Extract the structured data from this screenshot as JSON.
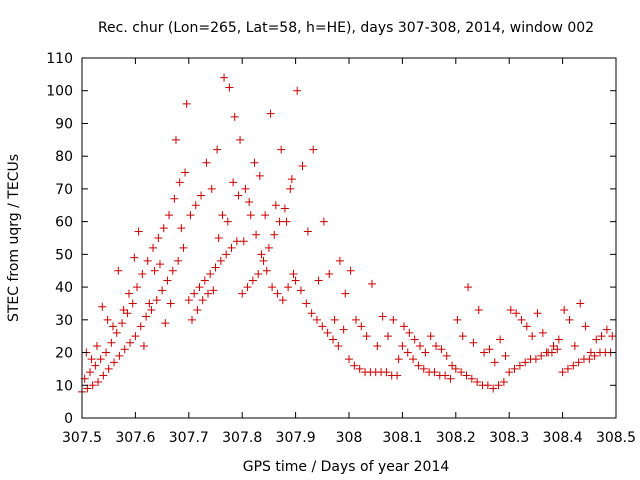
{
  "chart_data": {
    "type": "scatter",
    "title": "Rec. chur (Lon=265, Lat=58, h=HE), days 307-308, 2014, window 002",
    "xlabel": "GPS time / Days of year 2014",
    "ylabel": "STEC from uqrg / TECUs",
    "xlim": [
      307.5,
      308.5
    ],
    "ylim": [
      0,
      110
    ],
    "xticks": [
      "307.5",
      "307.6",
      "307.7",
      "307.8",
      "307.9",
      "308",
      "308.1",
      "308.2",
      "308.3",
      "308.4",
      "308.5"
    ],
    "yticks": [
      "0",
      "10",
      "20",
      "30",
      "40",
      "50",
      "60",
      "70",
      "80",
      "90",
      "100",
      "110"
    ],
    "grid": false,
    "legend": "none",
    "marker": "plus",
    "color": "#cc0000",
    "series": [
      {
        "x": [
          307.5,
          307.51,
          307.52,
          307.53,
          307.54,
          307.55,
          307.56,
          307.57,
          307.58,
          307.59,
          307.505,
          307.515,
          307.525,
          307.535,
          307.545,
          307.555,
          307.565,
          307.575,
          307.585,
          307.595,
          307.508,
          307.518,
          307.528,
          307.538,
          307.548,
          307.558,
          307.568,
          307.578,
          307.588,
          307.598,
          307.6,
          307.61,
          307.62,
          307.63,
          307.64,
          307.65,
          307.66,
          307.67,
          307.68,
          307.69,
          307.603,
          307.613,
          307.623,
          307.633,
          307.643,
          307.653,
          307.663,
          307.673,
          307.683,
          307.693,
          307.606,
          307.616,
          307.626,
          307.636,
          307.646,
          307.656,
          307.666,
          307.676,
          307.686,
          307.696,
          307.7,
          307.71,
          307.72,
          307.73,
          307.74,
          307.75,
          307.76,
          307.77,
          307.78,
          307.79,
          307.703,
          307.713,
          307.723,
          307.733,
          307.743,
          307.753,
          307.763,
          307.773,
          307.783,
          307.793,
          307.706,
          307.716,
          307.726,
          307.736,
          307.746,
          307.756,
          307.766,
          307.776,
          307.786,
          307.796,
          307.8,
          307.81,
          307.82,
          307.83,
          307.84,
          307.85,
          307.86,
          307.87,
          307.88,
          307.89,
          307.803,
          307.813,
          307.823,
          307.833,
          307.843,
          307.853,
          307.863,
          307.873,
          307.883,
          307.893,
          307.806,
          307.816,
          307.826,
          307.836,
          307.846,
          307.856,
          307.866,
          307.876,
          307.886,
          307.896,
          307.9,
          307.91,
          307.92,
          307.93,
          307.94,
          307.95,
          307.96,
          307.97,
          307.98,
          307.99,
          307.903,
          307.913,
          307.923,
          307.933,
          307.943,
          307.953,
          307.963,
          307.973,
          307.983,
          307.993,
          308.0,
          308.01,
          308.02,
          308.03,
          308.04,
          308.05,
          308.06,
          308.07,
          308.08,
          308.09,
          308.003,
          308.013,
          308.023,
          308.033,
          308.043,
          308.053,
          308.063,
          308.073,
          308.083,
          308.093,
          308.1,
          308.11,
          308.12,
          308.13,
          308.14,
          308.15,
          308.16,
          308.17,
          308.18,
          308.19,
          308.103,
          308.113,
          308.123,
          308.133,
          308.143,
          308.153,
          308.163,
          308.173,
          308.183,
          308.193,
          308.2,
          308.21,
          308.22,
          308.23,
          308.24,
          308.25,
          308.26,
          308.27,
          308.28,
          308.29,
          308.203,
          308.213,
          308.223,
          308.233,
          308.243,
          308.253,
          308.263,
          308.273,
          308.283,
          308.293,
          308.3,
          308.31,
          308.32,
          308.33,
          308.34,
          308.35,
          308.36,
          308.37,
          308.38,
          308.39,
          308.303,
          308.313,
          308.323,
          308.333,
          308.343,
          308.353,
          308.363,
          308.373,
          308.383,
          308.393,
          308.4,
          308.41,
          308.42,
          308.43,
          308.44,
          308.45,
          308.46,
          308.47,
          308.48,
          308.49,
          308.403,
          308.413,
          308.423,
          308.433,
          308.443,
          308.453,
          308.463,
          308.473,
          308.483,
          308.493
        ],
        "y": [
          8,
          9,
          10,
          11,
          13,
          15,
          17,
          19,
          21,
          23,
          12,
          14,
          16,
          18,
          20,
          23,
          26,
          29,
          32,
          35,
          20,
          18,
          22,
          34,
          30,
          28,
          45,
          33,
          38,
          49,
          25,
          28,
          31,
          33,
          36,
          39,
          42,
          45,
          48,
          52,
          40,
          44,
          48,
          52,
          55,
          58,
          62,
          67,
          72,
          75,
          57,
          22,
          35,
          45,
          47,
          29,
          35,
          85,
          58,
          96,
          36,
          38,
          40,
          42,
          44,
          46,
          48,
          50,
          52,
          54,
          62,
          65,
          68,
          78,
          70,
          82,
          62,
          60,
          72,
          68,
          30,
          33,
          36,
          38,
          39,
          55,
          104,
          101,
          92,
          85,
          38,
          40,
          42,
          44,
          48,
          52,
          56,
          60,
          64,
          70,
          54,
          66,
          78,
          74,
          62,
          93,
          65,
          82,
          60,
          73,
          70,
          62,
          56,
          50,
          45,
          40,
          38,
          36,
          40,
          44,
          42,
          39,
          35,
          32,
          30,
          28,
          26,
          24,
          22,
          27,
          100,
          77,
          57,
          82,
          42,
          60,
          44,
          30,
          48,
          38,
          18,
          16,
          15,
          14,
          14,
          14,
          14,
          14,
          13,
          13,
          45,
          30,
          28,
          25,
          41,
          22,
          31,
          25,
          30,
          18,
          22,
          20,
          18,
          16,
          15,
          14,
          14,
          13,
          13,
          12,
          28,
          26,
          24,
          22,
          20,
          25,
          22,
          21,
          19,
          16,
          15,
          14,
          13,
          12,
          11,
          10,
          10,
          9,
          10,
          11,
          30,
          25,
          40,
          23,
          33,
          20,
          21,
          17,
          24,
          19,
          14,
          15,
          16,
          17,
          18,
          18,
          19,
          20,
          20,
          21,
          33,
          32,
          30,
          28,
          25,
          32,
          26,
          20,
          22,
          24,
          14,
          15,
          16,
          17,
          18,
          18,
          19,
          20,
          20,
          20,
          33,
          30,
          22,
          35,
          28,
          20,
          24,
          25,
          27,
          25
        ]
      }
    ]
  }
}
